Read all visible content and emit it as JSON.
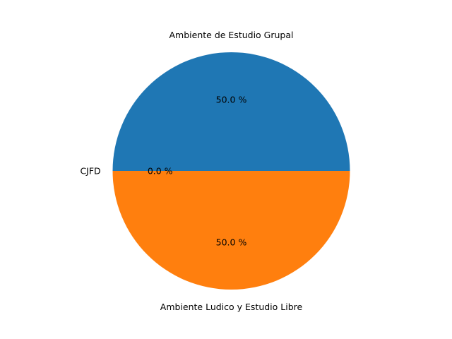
{
  "chart_data": {
    "type": "pie",
    "slices": [
      {
        "label": "Ambiente de Estudio Grupal",
        "value": 50.0,
        "pct_label": "50.0 %",
        "color": "#1f77b4"
      },
      {
        "label": "CJFD",
        "value": 0.0,
        "pct_label": "0.0 %",
        "color": "#2ca02c"
      },
      {
        "label": "Ambiente Ludico y Estudio Libre",
        "value": 50.0,
        "pct_label": "50.0 %",
        "color": "#ff7f0e"
      }
    ],
    "start_angle_deg": 0,
    "direction": "counterclockwise",
    "legend": "none"
  }
}
